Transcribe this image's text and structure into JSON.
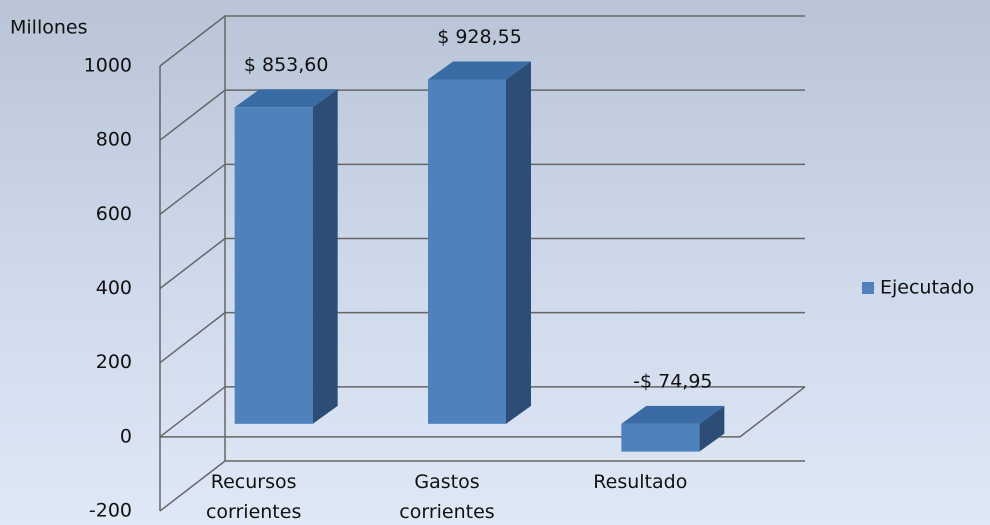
{
  "chart_data": {
    "type": "bar3d",
    "y_axis_label": "Millones",
    "categories": [
      "Recursos corrientes",
      "Gastos corrientes",
      "Resultado"
    ],
    "series": [
      {
        "name": "Ejecutado",
        "color": "#4f81bd",
        "values": [
          853.6,
          928.55,
          -74.95
        ],
        "value_labels": [
          "$ 853,60",
          "$ 928,55",
          "-$ 74,95"
        ]
      }
    ],
    "ylim": [
      -200,
      1000
    ],
    "yticks": [
      -200,
      0,
      200,
      400,
      600,
      800,
      1000
    ],
    "grid": true,
    "legend": "right"
  }
}
